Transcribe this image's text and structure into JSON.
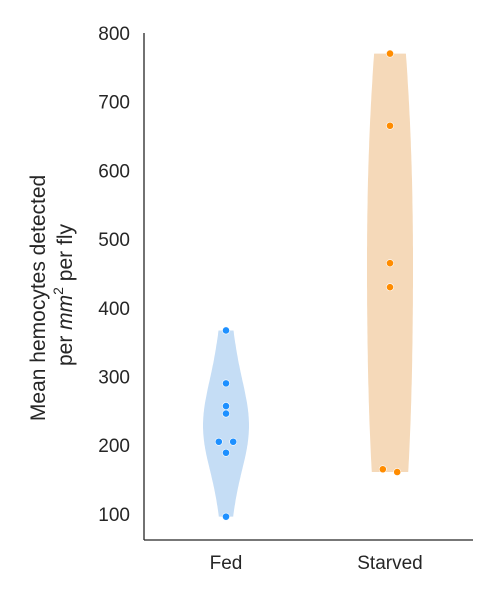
{
  "chart_data": {
    "type": "violin",
    "categories": [
      "Fed",
      "Starved"
    ],
    "ylabel_line1": "Mean hemocytes detected",
    "ylabel_line2_pre": "per ",
    "ylabel_line2_math": "mm",
    "ylabel_line2_sup": "2",
    "ylabel_line2_post": " per fly",
    "xlabel": "",
    "ylim": [
      62,
      800
    ],
    "yticks": [
      "100",
      "200",
      "300",
      "400",
      "500",
      "600",
      "700",
      "800"
    ],
    "grid": false,
    "series": [
      {
        "category": "Fed",
        "fill": "#c5ddf5",
        "point_color": "#1e90ff",
        "points": [
          {
            "y": 367,
            "jitter": 0
          },
          {
            "y": 290,
            "jitter": 0
          },
          {
            "y": 257,
            "jitter": 0
          },
          {
            "y": 246,
            "jitter": 0
          },
          {
            "y": 205,
            "jitter": -0.45
          },
          {
            "y": 205,
            "jitter": 0.45
          },
          {
            "y": 189,
            "jitter": 0
          },
          {
            "y": 96,
            "jitter": 0
          }
        ]
      },
      {
        "category": "Starved",
        "fill": "#f5d9b9",
        "point_color": "#ff8c00",
        "points": [
          {
            "y": 770,
            "jitter": 0
          },
          {
            "y": 665,
            "jitter": 0
          },
          {
            "y": 465,
            "jitter": 0
          },
          {
            "y": 430,
            "jitter": 0
          },
          {
            "y": 165,
            "jitter": -0.45
          },
          {
            "y": 161,
            "jitter": 0.45
          }
        ]
      }
    ]
  }
}
